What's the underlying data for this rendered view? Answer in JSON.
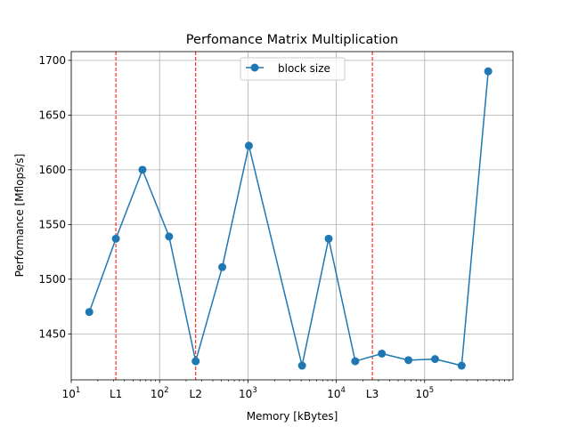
{
  "chart_data": {
    "type": "line",
    "title": "Perfomance Matrix Multiplication",
    "xlabel": "Memory [kBytes]",
    "ylabel": "Performance [Mflops/s]",
    "xscale": "log",
    "xlim": [
      10,
      1000000
    ],
    "ylim": [
      1408,
      1708
    ],
    "grid": true,
    "legend_position": "top-center",
    "y_ticks": [
      1450,
      1500,
      1550,
      1600,
      1650,
      1700
    ],
    "x_ticks": [
      {
        "value": 10,
        "base": "10",
        "exp": "1"
      },
      {
        "value": 100,
        "base": "10",
        "exp": "2"
      },
      {
        "value": 1000,
        "base": "10",
        "exp": "3"
      },
      {
        "value": 10000,
        "base": "10",
        "exp": "4"
      },
      {
        "value": 100000,
        "base": "10",
        "exp": "5"
      }
    ],
    "cache_lines": [
      {
        "label": "L1",
        "value": 32
      },
      {
        "label": "L2",
        "value": 256
      },
      {
        "label": "L3",
        "value": 25600
      }
    ],
    "series": [
      {
        "name": "block size",
        "color": "#1f77b4",
        "x": [
          16,
          32,
          64,
          128,
          256,
          512,
          1024,
          4096,
          8192,
          16384,
          32768,
          65536,
          131072,
          262144,
          524288
        ],
        "y": [
          1470,
          1537,
          1600,
          1539,
          1425,
          1511,
          1622,
          1421,
          1537,
          1425,
          1432,
          1426,
          1427,
          1421,
          1690
        ]
      }
    ]
  }
}
